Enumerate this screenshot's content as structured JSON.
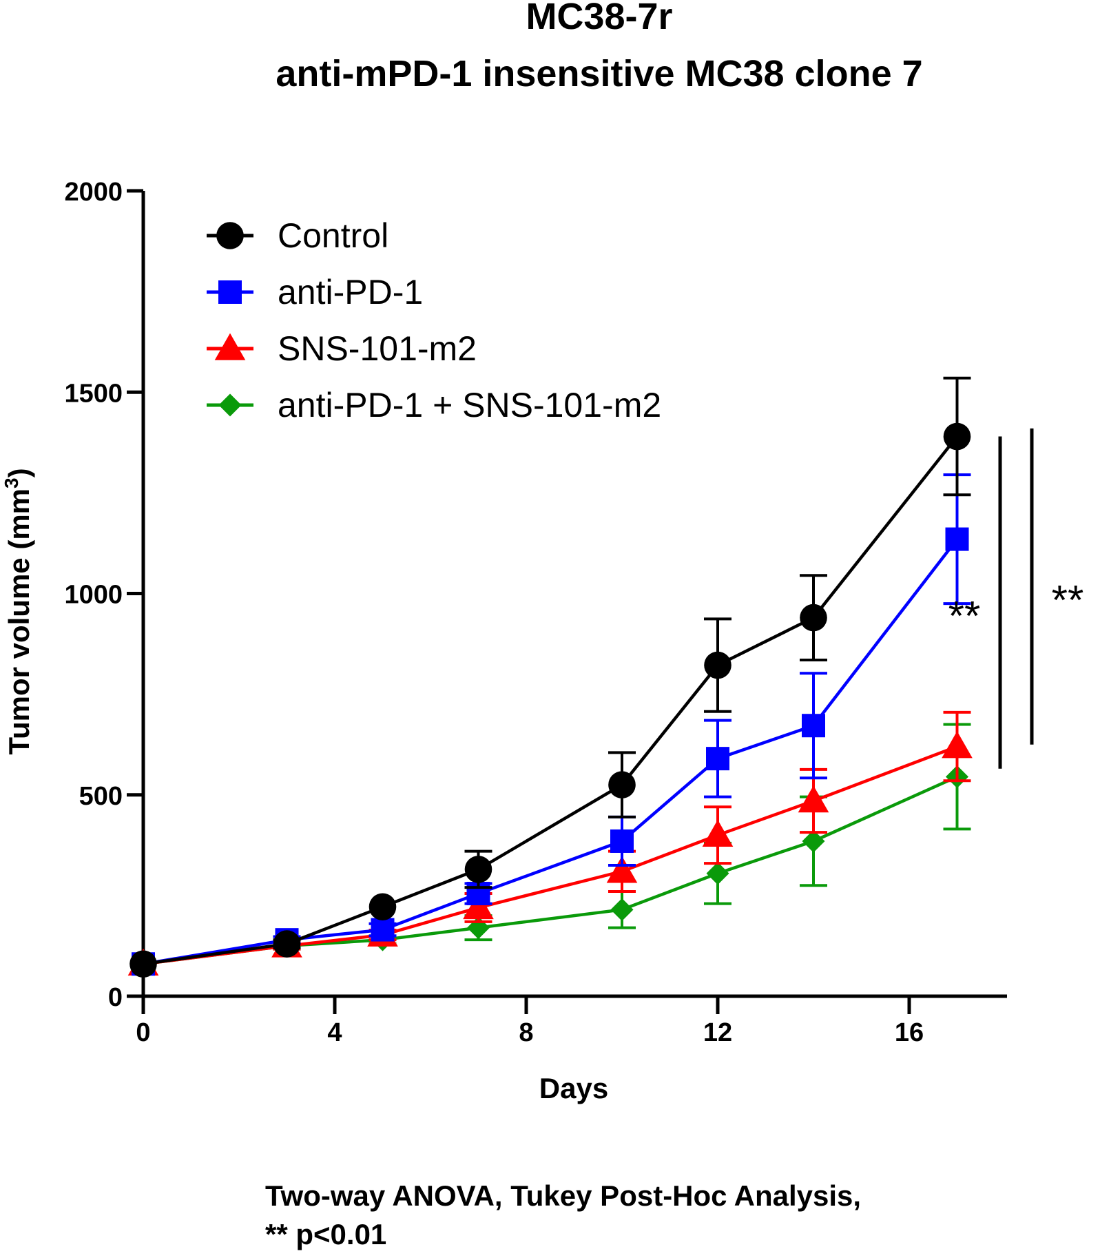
{
  "chart_data": {
    "type": "line",
    "title": [
      "MC38-7r",
      "anti-mPD-1 insensitive MC38 clone 7"
    ],
    "xlabel": "Days",
    "ylabel": "Tumor volume (mm",
    "ylabel_superscript": "3",
    "ylabel_suffix": ")",
    "xlim": [
      0,
      18
    ],
    "ylim": [
      0,
      2000
    ],
    "xticks": [
      0,
      4,
      8,
      12,
      16
    ],
    "yticks": [
      0,
      500,
      1000,
      1500,
      2000
    ],
    "legend_position": "top-left",
    "series": [
      {
        "name": "Control",
        "color": "#000000",
        "marker": "circle",
        "x": [
          0,
          3,
          5,
          7,
          10,
          12,
          14,
          17
        ],
        "y": [
          80,
          130,
          222,
          315,
          525,
          822,
          940,
          1390
        ],
        "err": [
          0,
          10,
          0,
          45,
          80,
          115,
          105,
          145
        ]
      },
      {
        "name": "anti-PD-1",
        "color": "#0000ff",
        "marker": "square",
        "x": [
          0,
          3,
          5,
          7,
          10,
          12,
          14,
          17
        ],
        "y": [
          80,
          140,
          165,
          255,
          385,
          590,
          672,
          1135
        ],
        "err": [
          0,
          8,
          15,
          25,
          60,
          95,
          130,
          160
        ]
      },
      {
        "name": "SNS-101-m2",
        "color": "#ff0000",
        "marker": "triangle",
        "x": [
          0,
          3,
          5,
          7,
          10,
          12,
          14,
          17
        ],
        "y": [
          80,
          125,
          152,
          220,
          310,
          400,
          485,
          620
        ],
        "err": [
          0,
          8,
          12,
          35,
          50,
          70,
          78,
          85
        ]
      },
      {
        "name": "anti-PD-1 + SNS-101-m2",
        "color": "#0a9a0a",
        "marker": "diamond",
        "x": [
          0,
          3,
          5,
          7,
          10,
          12,
          14,
          17
        ],
        "y": [
          80,
          125,
          140,
          170,
          215,
          305,
          385,
          545
        ],
        "err": [
          0,
          8,
          10,
          30,
          45,
          75,
          110,
          130
        ]
      }
    ],
    "significance": [
      {
        "label": "**",
        "from": 1390,
        "to": 565,
        "lane": 1,
        "label_position": "left"
      },
      {
        "label": "**",
        "from": 1410,
        "to": 625,
        "lane": 2,
        "label_position": "right"
      }
    ]
  },
  "footnote": {
    "line1": "Two-way ANOVA, Tukey Post-Hoc Analysis,",
    "line2": "** p<0.01"
  }
}
